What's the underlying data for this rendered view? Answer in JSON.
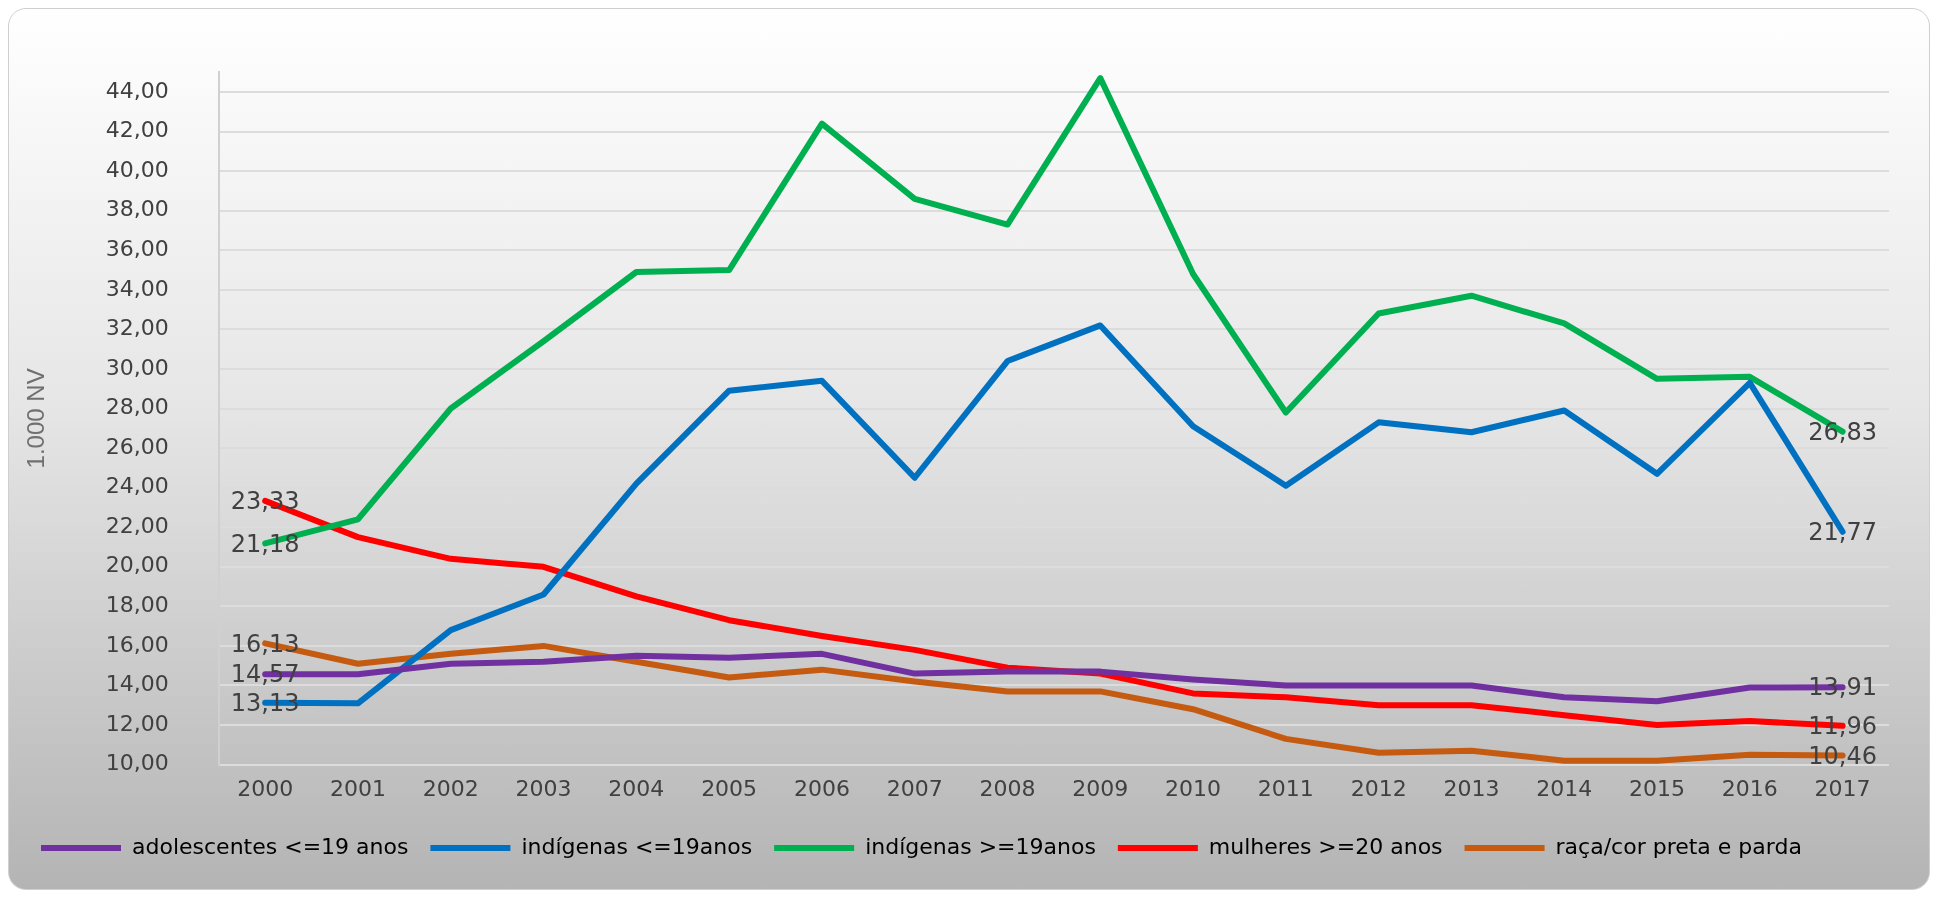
{
  "chart_data": {
    "type": "line",
    "ylabel": "1.000 NV",
    "categories": [
      "2000",
      "2001",
      "2002",
      "2003",
      "2004",
      "2005",
      "2006",
      "2007",
      "2008",
      "2009",
      "2010",
      "2011",
      "2012",
      "2013",
      "2014",
      "2015",
      "2016",
      "2017"
    ],
    "ylim": [
      10,
      45
    ],
    "yticks": [
      {
        "value": 10,
        "label": "10,00"
      },
      {
        "value": 12,
        "label": "12,00"
      },
      {
        "value": 14,
        "label": "14,00"
      },
      {
        "value": 16,
        "label": "16,00"
      },
      {
        "value": 18,
        "label": "18,00"
      },
      {
        "value": 20,
        "label": "20,00"
      },
      {
        "value": 22,
        "label": "22,00"
      },
      {
        "value": 24,
        "label": "24,00"
      },
      {
        "value": 26,
        "label": "26,00"
      },
      {
        "value": 28,
        "label": "28,00"
      },
      {
        "value": 30,
        "label": "30,00"
      },
      {
        "value": 32,
        "label": "32,00"
      },
      {
        "value": 34,
        "label": "34,00"
      },
      {
        "value": 36,
        "label": "36,00"
      },
      {
        "value": 38,
        "label": "38,00"
      },
      {
        "value": 40,
        "label": "40,00"
      },
      {
        "value": 42,
        "label": "42,00"
      },
      {
        "value": 44,
        "label": "44,00"
      }
    ],
    "grid": "y",
    "legend": "bottom",
    "marker": "none",
    "line_style": "solid",
    "series": [
      {
        "name": "adolescentes <=19 anos",
        "color": "#7030a0",
        "values": [
          14.57,
          14.57,
          15.1,
          15.2,
          15.5,
          15.4,
          15.6,
          14.6,
          14.7,
          14.7,
          14.3,
          14.0,
          14.0,
          14.0,
          13.4,
          13.2,
          13.9,
          13.91
        ],
        "value_labels": [
          "14,57",
          null,
          null,
          null,
          null,
          null,
          null,
          null,
          null,
          null,
          null,
          null,
          null,
          null,
          null,
          null,
          null,
          "13,91"
        ]
      },
      {
        "name": "indígenas <=19anos",
        "color": "#0070c0",
        "values": [
          13.13,
          13.1,
          16.8,
          18.6,
          24.2,
          28.9,
          29.4,
          24.5,
          30.4,
          32.2,
          27.1,
          24.1,
          27.3,
          26.8,
          27.9,
          24.7,
          29.3,
          21.77
        ],
        "value_labels": [
          "13,13",
          null,
          null,
          null,
          null,
          null,
          null,
          null,
          null,
          null,
          null,
          null,
          null,
          null,
          null,
          null,
          null,
          "21,77"
        ]
      },
      {
        "name": "indígenas >=19anos",
        "color": "#00b050",
        "values": [
          21.18,
          22.4,
          28.0,
          31.4,
          34.9,
          35.0,
          42.4,
          38.6,
          37.3,
          44.7,
          34.8,
          27.8,
          32.8,
          33.7,
          32.3,
          29.5,
          29.6,
          26.83
        ],
        "value_labels": [
          "21,18",
          null,
          null,
          null,
          null,
          null,
          null,
          null,
          null,
          null,
          null,
          null,
          null,
          null,
          null,
          null,
          null,
          "26,83"
        ]
      },
      {
        "name": "mulheres >=20 anos",
        "color": "#ff0000",
        "values": [
          23.33,
          21.5,
          20.4,
          20.0,
          18.5,
          17.3,
          16.5,
          15.8,
          14.9,
          14.6,
          13.6,
          13.4,
          13.0,
          13.0,
          12.5,
          12.0,
          12.2,
          11.96
        ],
        "value_labels": [
          "23,33",
          null,
          null,
          null,
          null,
          null,
          null,
          null,
          null,
          null,
          null,
          null,
          null,
          null,
          null,
          null,
          null,
          "11,96"
        ]
      },
      {
        "name": "raça/cor preta e parda",
        "color": "#c55a11",
        "values": [
          16.13,
          15.1,
          15.6,
          16.0,
          15.2,
          14.4,
          14.8,
          14.2,
          13.7,
          13.7,
          12.8,
          11.3,
          10.6,
          10.7,
          10.2,
          10.2,
          10.5,
          10.46
        ],
        "value_labels": [
          "16,13",
          null,
          null,
          null,
          null,
          null,
          null,
          null,
          null,
          null,
          null,
          null,
          null,
          null,
          null,
          null,
          null,
          "10,46"
        ]
      }
    ]
  }
}
